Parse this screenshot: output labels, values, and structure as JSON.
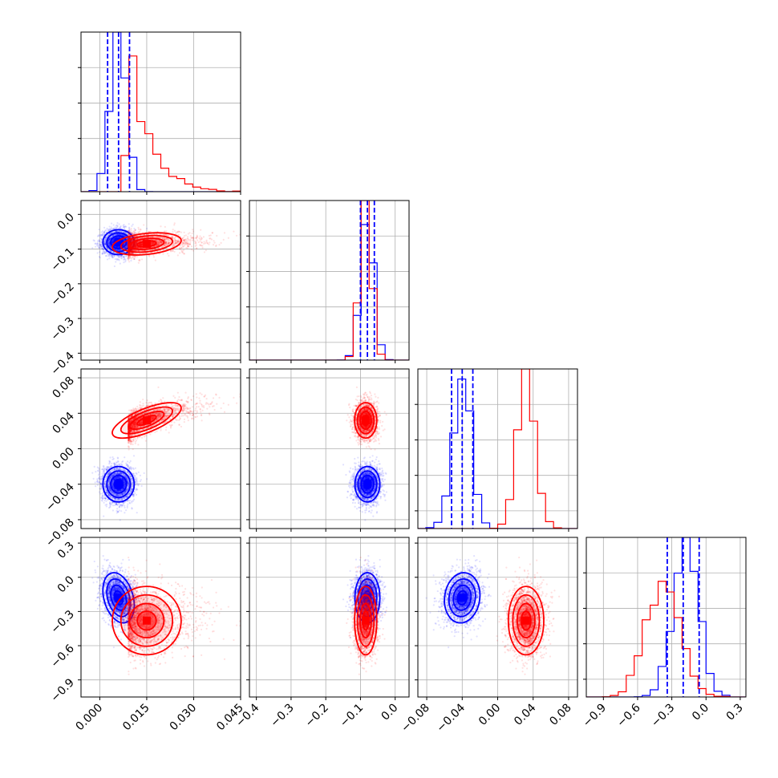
{
  "chart_data": {
    "type": "corner",
    "title": "",
    "grid": true,
    "parameters": [
      {
        "range": [
          -0.006,
          0.045
        ],
        "ticks": [
          0.0,
          0.015,
          0.03,
          0.045
        ],
        "tick_labels": [
          "0.000",
          "0.015",
          "0.030",
          "0.045"
        ]
      },
      {
        "range": [
          -0.42,
          0.04
        ],
        "ticks": [
          -0.4,
          -0.3,
          -0.2,
          -0.1,
          0.0
        ],
        "tick_labels": [
          "−0.4",
          "−0.3",
          "−0.2",
          "−0.1",
          "0.0"
        ]
      },
      {
        "range": [
          -0.09,
          0.09
        ],
        "ticks": [
          -0.08,
          -0.04,
          0.0,
          0.04,
          0.08
        ],
        "tick_labels": [
          "−0.08",
          "−0.04",
          "0.00",
          "0.04",
          "0.08"
        ]
      },
      {
        "range": [
          -1.05,
          0.35
        ],
        "ticks": [
          -0.9,
          -0.6,
          -0.3,
          0.0,
          0.3
        ],
        "tick_labels": [
          "−0.9",
          "−0.6",
          "−0.3",
          "0.0",
          "0.3"
        ]
      }
    ],
    "series": [
      {
        "color": "#0000ff",
        "means": [
          0.006,
          -0.08,
          -0.04,
          -0.18
        ],
        "sds": [
          0.0025,
          0.018,
          0.01,
          0.11
        ],
        "correlations": [
          [
            1,
            0,
            0,
            -0.3
          ],
          [
            0,
            1,
            0,
            0
          ],
          [
            0,
            0,
            1,
            0.1
          ],
          [
            -0.3,
            0,
            0.1,
            1
          ]
        ],
        "quantiles": [
          [
            0.0025,
            0.006,
            0.0095
          ],
          [
            -0.1,
            -0.08,
            -0.06
          ],
          [
            -0.052,
            -0.04,
            -0.028
          ],
          [
            -0.34,
            -0.2,
            -0.06
          ]
        ]
      },
      {
        "color": "#ff0000",
        "means": [
          0.015,
          -0.085,
          0.032,
          -0.38
        ],
        "sds": [
          0.0055,
          0.016,
          0.01,
          0.15
        ],
        "correlations": [
          [
            1,
            0.3,
            0.7,
            0
          ],
          [
            0.3,
            1,
            0,
            0
          ],
          [
            0.7,
            0,
            1,
            0
          ],
          [
            0,
            0,
            0,
            1
          ]
        ],
        "quantiles": []
      }
    ]
  },
  "colors": {
    "blue": "#0000ff",
    "red": "#ff0000",
    "grid": "#b0b0b0"
  }
}
